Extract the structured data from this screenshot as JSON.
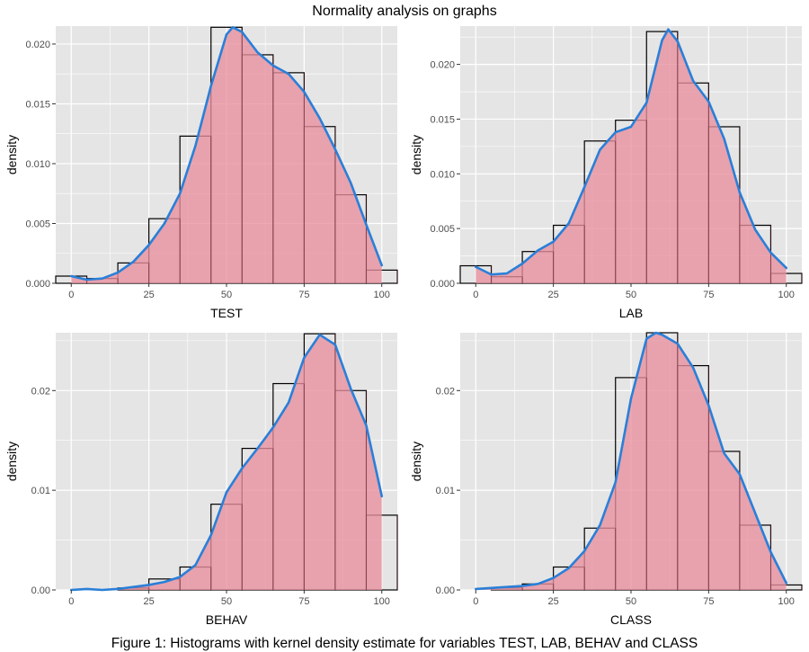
{
  "figure_title": "Normality analysis on graphs",
  "caption": "Figure 1: Histograms with kernel density estimate for variables TEST, LAB, BEHAV and CLASS",
  "colors": {
    "panel_background": "#e5e5e5",
    "grid": "#ffffff",
    "bar_outline": "#000000",
    "density_fill": "#e8909e",
    "density_line": "#2a7fd8",
    "tick_text": "#4d4d4d"
  },
  "chart_data": [
    {
      "type": "bar",
      "xlabel": "TEST",
      "ylabel": "density",
      "xlim": [
        -5,
        105
      ],
      "ylim": [
        0,
        0.0215
      ],
      "xticks": [
        0,
        25,
        50,
        75,
        100
      ],
      "xtick_labels": [
        "0",
        "25",
        "50",
        "75",
        "100"
      ],
      "yticks": [
        0,
        0.005,
        0.01,
        0.015,
        0.02
      ],
      "ytick_labels": [
        "0.000",
        "0.005",
        "0.010",
        "0.015",
        "0.020"
      ],
      "bin_centers": [
        0,
        10,
        20,
        30,
        40,
        50,
        60,
        70,
        80,
        90,
        100
      ],
      "bin_width": 10,
      "histogram": [
        0.0006,
        0.0004,
        0.0017,
        0.0054,
        0.0123,
        0.0214,
        0.0191,
        0.0176,
        0.0131,
        0.0074,
        0.0011
      ],
      "density_x": [
        0,
        5,
        10,
        15,
        20,
        25,
        30,
        35,
        40,
        45,
        50,
        52,
        55,
        60,
        65,
        70,
        75,
        80,
        85,
        90,
        95,
        100
      ],
      "density_y": [
        0.0006,
        0.0003,
        0.0004,
        0.0009,
        0.0018,
        0.0032,
        0.005,
        0.0075,
        0.0115,
        0.0165,
        0.0208,
        0.0214,
        0.021,
        0.0193,
        0.0182,
        0.0175,
        0.016,
        0.0138,
        0.0112,
        0.0084,
        0.0049,
        0.0015
      ]
    },
    {
      "type": "bar",
      "xlabel": "LAB",
      "ylabel": "density",
      "xlim": [
        -5,
        105
      ],
      "ylim": [
        0,
        0.0235
      ],
      "xticks": [
        0,
        25,
        50,
        75,
        100
      ],
      "xtick_labels": [
        "0",
        "25",
        "50",
        "75",
        "100"
      ],
      "yticks": [
        0,
        0.005,
        0.01,
        0.015,
        0.02
      ],
      "ytick_labels": [
        "0.000",
        "0.005",
        "0.010",
        "0.015",
        "0.020"
      ],
      "bin_centers": [
        0,
        10,
        20,
        30,
        40,
        50,
        60,
        70,
        80,
        90,
        100
      ],
      "bin_width": 10,
      "histogram": [
        0.0016,
        0.0006,
        0.0029,
        0.0053,
        0.013,
        0.0149,
        0.023,
        0.0183,
        0.0143,
        0.0053,
        0.0009
      ],
      "density_x": [
        0,
        5,
        10,
        15,
        20,
        25,
        30,
        35,
        40,
        45,
        50,
        55,
        60,
        62,
        65,
        70,
        75,
        80,
        85,
        90,
        95,
        100
      ],
      "density_y": [
        0.0015,
        0.0008,
        0.0009,
        0.0018,
        0.003,
        0.0038,
        0.0055,
        0.0088,
        0.0122,
        0.0138,
        0.0143,
        0.0165,
        0.0222,
        0.0232,
        0.0221,
        0.0185,
        0.0166,
        0.0132,
        0.0083,
        0.0049,
        0.0028,
        0.0014
      ]
    },
    {
      "type": "bar",
      "xlabel": "BEHAV",
      "ylabel": "density",
      "xlim": [
        -5,
        105
      ],
      "ylim": [
        0,
        0.0258
      ],
      "xticks": [
        0,
        25,
        50,
        75,
        100
      ],
      "xtick_labels": [
        "0",
        "25",
        "50",
        "75",
        "100"
      ],
      "yticks": [
        0,
        0.01,
        0.02
      ],
      "ytick_labels": [
        "0.00",
        "0.01",
        "0.02"
      ],
      "bin_centers": [
        0,
        10,
        20,
        30,
        40,
        50,
        60,
        70,
        80,
        90,
        100
      ],
      "bin_width": 10,
      "histogram": [
        0,
        0,
        0.0002,
        0.0011,
        0.0023,
        0.0086,
        0.0142,
        0.0207,
        0.0257,
        0.02,
        0.0075
      ],
      "density_x": [
        0,
        5,
        10,
        15,
        20,
        25,
        30,
        35,
        40,
        45,
        50,
        55,
        60,
        65,
        70,
        75,
        80,
        85,
        90,
        95,
        100
      ],
      "density_y": [
        0,
        0.0001,
        0,
        0.0001,
        0.0003,
        0.0005,
        0.0008,
        0.0013,
        0.0025,
        0.0055,
        0.0098,
        0.0122,
        0.0142,
        0.0163,
        0.0188,
        0.0233,
        0.0256,
        0.0246,
        0.0202,
        0.0165,
        0.0094
      ]
    },
    {
      "type": "bar",
      "xlabel": "CLASS",
      "ylabel": "density",
      "xlim": [
        -5,
        105
      ],
      "ylim": [
        0,
        0.0258
      ],
      "xticks": [
        0,
        25,
        50,
        75,
        100
      ],
      "xtick_labels": [
        "0",
        "25",
        "50",
        "75",
        "100"
      ],
      "yticks": [
        0,
        0.01,
        0.02
      ],
      "ytick_labels": [
        "0.00",
        "0.01",
        "0.02"
      ],
      "bin_centers": [
        0,
        10,
        20,
        30,
        40,
        50,
        60,
        70,
        80,
        90,
        100
      ],
      "bin_width": 10,
      "histogram": [
        0,
        0.0002,
        0.0006,
        0.0023,
        0.0062,
        0.0213,
        0.0258,
        0.0225,
        0.0139,
        0.0065,
        0.0005
      ],
      "density_x": [
        0,
        5,
        10,
        15,
        20,
        25,
        30,
        35,
        40,
        45,
        50,
        55,
        58,
        60,
        65,
        70,
        75,
        80,
        85,
        90,
        95,
        100
      ],
      "density_y": [
        0.0001,
        0.0002,
        0.0003,
        0.0004,
        0.0006,
        0.0012,
        0.0022,
        0.0039,
        0.0065,
        0.0108,
        0.0192,
        0.0252,
        0.0258,
        0.0256,
        0.0247,
        0.0223,
        0.0185,
        0.0137,
        0.0116,
        0.0077,
        0.0038,
        0.0007
      ]
    }
  ]
}
